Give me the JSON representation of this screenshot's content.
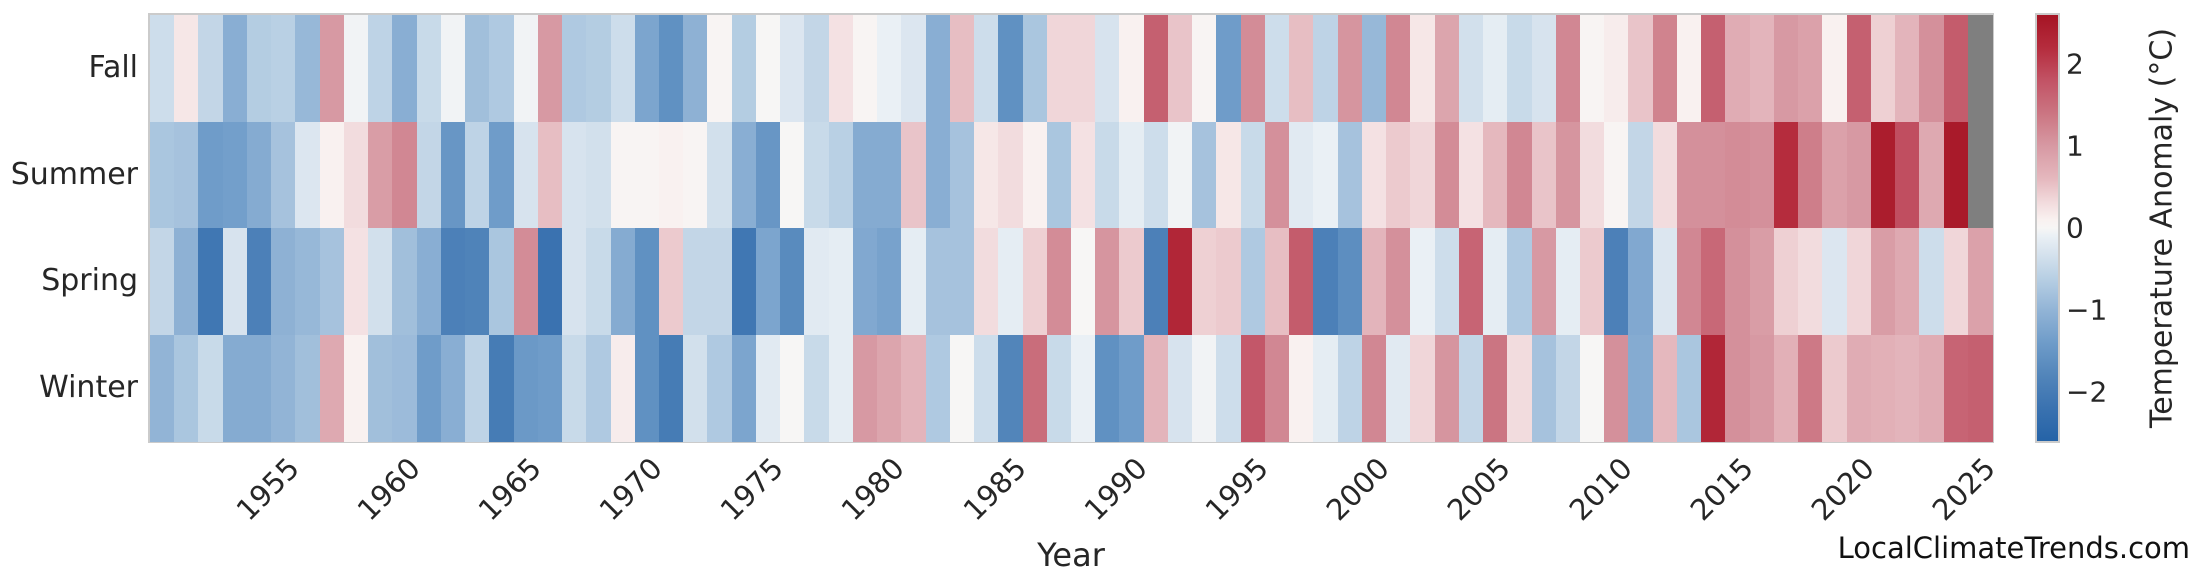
{
  "xlabel": "Year",
  "watermark": "LocalClimateTrends.com",
  "colorbar": {
    "label": "Temperature Anomaly (°C)",
    "ticks": [
      2,
      1,
      0,
      -1,
      -2
    ],
    "vmin": -2.6,
    "vmax": 2.6
  },
  "nan_color": "#7f7f7f",
  "text_color": "#262626",
  "border_color": "#cbcbcb",
  "color_stops": [
    [
      -2.6,
      "#2563a7"
    ],
    [
      -2.2,
      "#3a72b0"
    ],
    [
      -1.8,
      "#5285ba"
    ],
    [
      -1.4,
      "#6f9cc9"
    ],
    [
      -1.0,
      "#92b4d6"
    ],
    [
      -0.6,
      "#b9d0e4"
    ],
    [
      -0.3,
      "#d7e3ee"
    ],
    [
      -0.1,
      "#eaf0f5"
    ],
    [
      0.0,
      "#f7f6f5"
    ],
    [
      0.1,
      "#f9f1f0"
    ],
    [
      0.3,
      "#f2dcde"
    ],
    [
      0.6,
      "#e5b8be"
    ],
    [
      1.0,
      "#d799a3"
    ],
    [
      1.4,
      "#cb7582"
    ],
    [
      1.8,
      "#c25365"
    ],
    [
      2.2,
      "#b52c3d"
    ],
    [
      2.6,
      "#a51424"
    ]
  ],
  "x_tick_years": [
    1955,
    1960,
    1965,
    1970,
    1975,
    1980,
    1985,
    1990,
    1995,
    2000,
    2005,
    2010,
    2015,
    2020,
    2025
  ],
  "chart_data": {
    "type": "heatmap",
    "title": "",
    "xlabel": "Year",
    "ylabel": "",
    "legend_label": "Temperature Anomaly (°C)",
    "grid": false,
    "x": [
      1950,
      1951,
      1952,
      1953,
      1954,
      1955,
      1956,
      1957,
      1958,
      1959,
      1960,
      1961,
      1962,
      1963,
      1964,
      1965,
      1966,
      1967,
      1968,
      1969,
      1970,
      1971,
      1972,
      1973,
      1974,
      1975,
      1976,
      1977,
      1978,
      1979,
      1980,
      1981,
      1982,
      1983,
      1984,
      1985,
      1986,
      1987,
      1988,
      1989,
      1990,
      1991,
      1992,
      1993,
      1994,
      1995,
      1996,
      1997,
      1998,
      1999,
      2000,
      2001,
      2002,
      2003,
      2004,
      2005,
      2006,
      2007,
      2008,
      2009,
      2010,
      2011,
      2012,
      2013,
      2014,
      2015,
      2016,
      2017,
      2018,
      2019,
      2020,
      2021,
      2022,
      2023,
      2024,
      2025
    ],
    "rows": [
      "Fall",
      "Summer",
      "Spring",
      "Winter"
    ],
    "series": [
      {
        "name": "Fall",
        "values": [
          -0.4,
          0.2,
          -0.5,
          -1.1,
          -0.65,
          -0.6,
          -0.95,
          1.0,
          -0.05,
          -0.55,
          -1.1,
          -0.45,
          -0.05,
          -0.85,
          -0.7,
          -0.05,
          1.0,
          -0.7,
          -0.65,
          -0.4,
          -1.25,
          -1.6,
          -1.05,
          0.05,
          -0.65,
          0.0,
          -0.25,
          -0.5,
          0.25,
          0.05,
          -0.1,
          -0.25,
          -1.1,
          0.55,
          -0.4,
          -1.6,
          -0.75,
          0.35,
          0.35,
          -0.3,
          0.1,
          1.65,
          0.5,
          0.05,
          -1.4,
          1.15,
          -0.4,
          0.55,
          -0.55,
          1.05,
          -0.95,
          1.2,
          0.2,
          0.85,
          -0.35,
          -0.15,
          -0.45,
          -0.3,
          1.2,
          0.05,
          0.15,
          0.5,
          1.25,
          0.1,
          1.65,
          0.75,
          0.65,
          1.0,
          0.9,
          0.1,
          1.65,
          0.4,
          0.65,
          1.1,
          1.7,
          null
        ]
      },
      {
        "name": "Summer",
        "values": [
          -0.75,
          -0.8,
          -1.4,
          -1.35,
          -1.15,
          -0.8,
          -0.25,
          0.1,
          0.3,
          0.95,
          1.2,
          -0.5,
          -1.5,
          -0.55,
          -1.4,
          -0.3,
          0.55,
          -0.3,
          -0.35,
          0.05,
          0.05,
          0.1,
          0.05,
          -0.35,
          -1.1,
          -1.5,
          0.0,
          -0.45,
          -0.6,
          -1.15,
          -1.15,
          0.5,
          -1.1,
          -0.8,
          0.2,
          0.3,
          0.1,
          -0.75,
          0.25,
          -0.45,
          -0.15,
          -0.4,
          -0.05,
          -0.8,
          0.2,
          -0.45,
          1.1,
          -0.2,
          -0.1,
          -0.8,
          0.25,
          0.45,
          0.35,
          1.15,
          0.25,
          0.6,
          1.2,
          0.5,
          1.05,
          0.3,
          0.05,
          -0.5,
          0.3,
          1.1,
          1.1,
          1.15,
          1.1,
          2.2,
          1.3,
          0.9,
          1.0,
          2.45,
          1.85,
          0.8,
          2.5,
          null
        ]
      },
      {
        "name": "Spring",
        "values": [
          -0.5,
          -1.05,
          -2.1,
          -0.3,
          -1.9,
          -1.05,
          -0.95,
          -0.8,
          0.25,
          -0.35,
          -0.85,
          -1.1,
          -1.9,
          -1.85,
          -0.75,
          1.15,
          -2.2,
          -0.3,
          -0.45,
          -1.15,
          -1.6,
          0.45,
          -0.5,
          -0.5,
          -2.1,
          -1.25,
          -1.7,
          -0.2,
          -0.15,
          -1.2,
          -1.3,
          -0.15,
          -0.8,
          -0.8,
          0.3,
          -0.15,
          0.4,
          1.15,
          0.0,
          1.05,
          0.45,
          -1.9,
          2.3,
          0.4,
          0.45,
          -0.7,
          0.55,
          1.7,
          -1.9,
          -1.65,
          0.65,
          1.1,
          -0.1,
          -0.4,
          1.6,
          -0.15,
          -0.7,
          1.0,
          -0.15,
          0.45,
          -1.9,
          -1.2,
          -0.25,
          1.2,
          1.55,
          1.1,
          0.95,
          0.4,
          0.3,
          -0.25,
          0.35,
          0.95,
          0.8,
          -0.4,
          0.35,
          0.9
        ]
      },
      {
        "name": "Winter",
        "values": [
          -1.0,
          -0.75,
          -0.45,
          -1.15,
          -1.15,
          -1.0,
          -0.85,
          0.8,
          0.1,
          -0.85,
          -0.9,
          -1.4,
          -1.1,
          -0.55,
          -2.0,
          -1.45,
          -1.4,
          -0.45,
          -0.7,
          0.15,
          -1.6,
          -2.0,
          -0.35,
          -0.7,
          -1.25,
          -0.2,
          0.0,
          -0.45,
          -0.15,
          1.0,
          0.85,
          0.65,
          -0.7,
          0.0,
          -0.4,
          -1.8,
          1.5,
          -0.45,
          -0.1,
          -1.6,
          -1.4,
          0.65,
          -0.3,
          -0.05,
          -0.4,
          1.75,
          1.2,
          0.1,
          -0.15,
          -0.55,
          1.2,
          -0.2,
          0.35,
          1.05,
          -0.5,
          1.4,
          0.3,
          -0.8,
          -0.5,
          0.0,
          1.1,
          -1.15,
          0.6,
          -0.75,
          2.3,
          1.1,
          1.0,
          0.7,
          1.35,
          0.45,
          0.75,
          0.7,
          0.65,
          0.75,
          1.6,
          1.65
        ]
      }
    ],
    "missing_cells": [
      [
        "Fall",
        2025
      ],
      [
        "Summer",
        2025
      ]
    ],
    "colorbar": {
      "label": "Temperature Anomaly (°C)",
      "ticks": [
        2,
        1,
        0,
        -1,
        -2
      ],
      "range": [
        -2.6,
        2.6
      ],
      "position": "right"
    },
    "layout_hints": {
      "x_tick_rotation": 45,
      "row_order_top_to_bottom": [
        "Fall",
        "Summer",
        "Spring",
        "Winter"
      ]
    }
  }
}
